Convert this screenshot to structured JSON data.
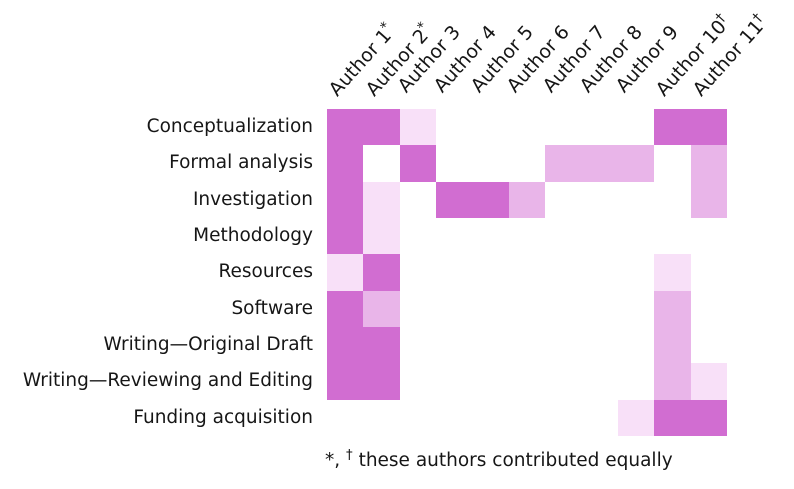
{
  "chart_data": {
    "type": "heatmap",
    "rows": [
      "Conceptualization",
      "Formal analysis",
      "Investigation",
      "Methodology",
      "Resources",
      "Software",
      "Writing—Original Draft",
      "Writing—Reviewing and Editing",
      "Funding acquisition"
    ],
    "columns": [
      {
        "name": "Author 1",
        "marker": "*"
      },
      {
        "name": "Author 2",
        "marker": "*"
      },
      {
        "name": "Author 3",
        "marker": ""
      },
      {
        "name": "Author 4",
        "marker": ""
      },
      {
        "name": "Author 5",
        "marker": ""
      },
      {
        "name": "Author 6",
        "marker": ""
      },
      {
        "name": "Author 7",
        "marker": ""
      },
      {
        "name": "Author 8",
        "marker": ""
      },
      {
        "name": "Author 9",
        "marker": ""
      },
      {
        "name": "Author 10",
        "marker": "†"
      },
      {
        "name": "Author 11",
        "marker": "†"
      }
    ],
    "matrix": [
      [
        3,
        3,
        1,
        0,
        0,
        0,
        0,
        0,
        0,
        3,
        3
      ],
      [
        3,
        0,
        3,
        0,
        0,
        0,
        2,
        2,
        2,
        0,
        2
      ],
      [
        3,
        1,
        0,
        3,
        3,
        2,
        0,
        0,
        0,
        0,
        2
      ],
      [
        3,
        1,
        0,
        0,
        0,
        0,
        0,
        0,
        0,
        0,
        0
      ],
      [
        1,
        3,
        0,
        0,
        0,
        0,
        0,
        0,
        0,
        1,
        0
      ],
      [
        3,
        2,
        0,
        0,
        0,
        0,
        0,
        0,
        0,
        2,
        0
      ],
      [
        3,
        3,
        0,
        0,
        0,
        0,
        0,
        0,
        0,
        2,
        0
      ],
      [
        3,
        3,
        0,
        0,
        0,
        0,
        0,
        0,
        0,
        2,
        1
      ],
      [
        0,
        0,
        0,
        0,
        0,
        0,
        0,
        0,
        1,
        3,
        3
      ]
    ],
    "levels": {
      "0": "none",
      "1": "low",
      "2": "medium",
      "3": "high"
    },
    "level_colors": [
      "#ffffff",
      "#f8e0f8",
      "#e9b5e9",
      "#d16dd1"
    ],
    "legend": "none"
  },
  "footnote": {
    "marker_star": "*",
    "marker_dagger": "†",
    "text": "these authors contributed equally"
  }
}
